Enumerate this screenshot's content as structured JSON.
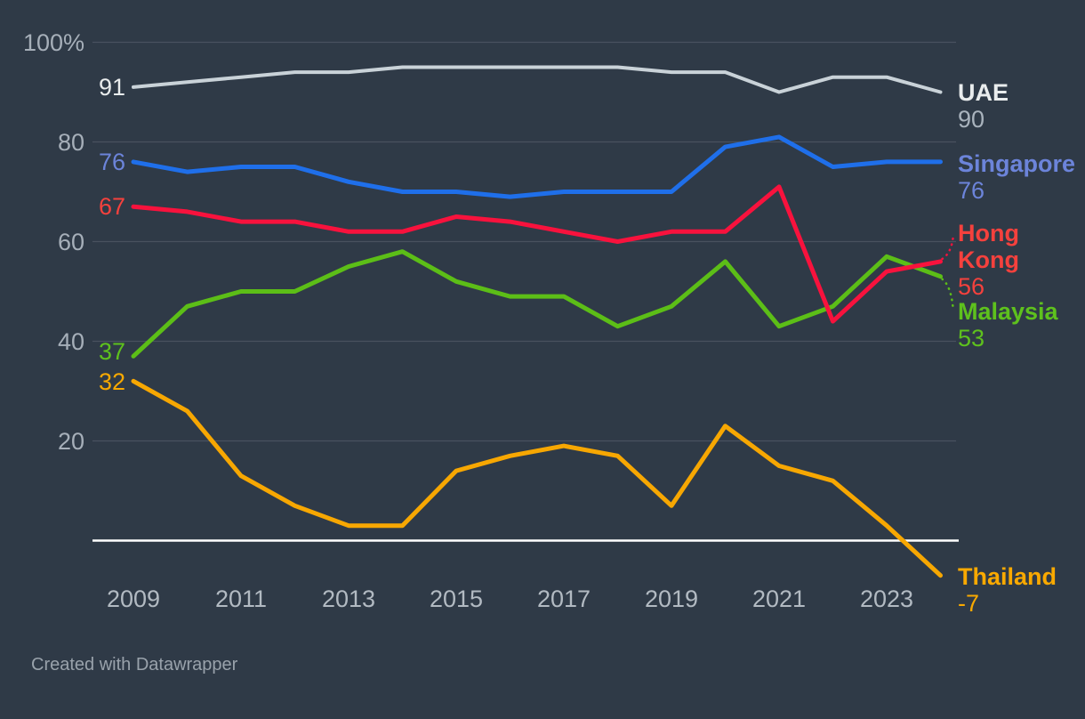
{
  "chart_data": {
    "type": "line",
    "x": [
      2009,
      2010,
      2011,
      2012,
      2013,
      2014,
      2015,
      2016,
      2017,
      2018,
      2019,
      2020,
      2021,
      2022,
      2023,
      2024
    ],
    "xticks": [
      {
        "label": "2009",
        "value": 2009
      },
      {
        "label": "2011",
        "value": 2011
      },
      {
        "label": "2013",
        "value": 2013
      },
      {
        "label": "2015",
        "value": 2015
      },
      {
        "label": "2017",
        "value": 2017
      },
      {
        "label": "2019",
        "value": 2019
      },
      {
        "label": "2021",
        "value": 2021
      },
      {
        "label": "2023",
        "value": 2023
      }
    ],
    "yticks": [
      {
        "label": "100%",
        "value": 100
      },
      {
        "label": "80",
        "value": 80
      },
      {
        "label": "60",
        "value": 60
      },
      {
        "label": "40",
        "value": 40
      },
      {
        "label": "20",
        "value": 20
      }
    ],
    "baseline_value": 0,
    "ylim": [
      -10,
      103
    ],
    "grid": true,
    "legend_position": "line-end-labels-right",
    "series": [
      {
        "name": "UAE",
        "name_lines": [
          "UAE"
        ],
        "color": "#c9d2d8",
        "label_color": "#e9eced",
        "value_color": "#a9b3bd",
        "start_label": "91",
        "end_label": "90",
        "values": [
          91,
          92,
          93,
          94,
          94,
          95,
          95,
          95,
          95,
          95,
          94,
          94,
          90,
          93,
          93,
          90
        ]
      },
      {
        "name": "Singapore",
        "name_lines": [
          "Singapore"
        ],
        "color": "#1f6fea",
        "label_color": "#6c84da",
        "value_color": "#6c84da",
        "start_label": "76",
        "end_label": "76",
        "values": [
          76,
          74,
          75,
          75,
          72,
          70,
          70,
          69,
          70,
          70,
          70,
          79,
          81,
          75,
          76,
          76
        ]
      },
      {
        "name": "Hong Kong",
        "name_lines": [
          "Hong",
          "Kong"
        ],
        "color": "#f8123d",
        "label_color": "#f5413d",
        "value_color": "#f5413d",
        "start_label": "67",
        "end_label": "56",
        "values": [
          67,
          66,
          64,
          64,
          62,
          62,
          65,
          64,
          62,
          60,
          62,
          62,
          71,
          44,
          54,
          56
        ]
      },
      {
        "name": "Malaysia",
        "name_lines": [
          "Malaysia"
        ],
        "color": "#5cbe17",
        "label_color": "#5ec11d",
        "value_color": "#5ec11d",
        "start_label": "37",
        "end_label": "53",
        "values": [
          37,
          47,
          50,
          50,
          55,
          58,
          52,
          49,
          49,
          43,
          47,
          56,
          43,
          47,
          57,
          53
        ]
      },
      {
        "name": "Thailand",
        "name_lines": [
          "Thailand"
        ],
        "color": "#f7a702",
        "label_color": "#f9a900",
        "value_color": "#f9a900",
        "start_label": "32",
        "end_label": "-7",
        "values": [
          32,
          26,
          13,
          7,
          3,
          3,
          14,
          17,
          19,
          17,
          7,
          23,
          15,
          12,
          3,
          -7
        ]
      }
    ]
  },
  "attribution": "Created with Datawrapper"
}
